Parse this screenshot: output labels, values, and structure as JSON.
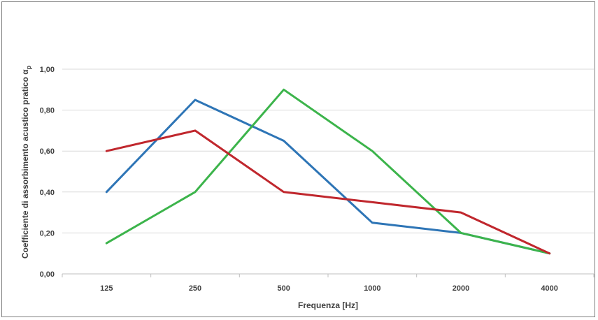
{
  "chart_data": {
    "type": "line",
    "title": "",
    "xlabel": "Frequenza [Hz]",
    "ylabel": "Coefficiente di assorbimento acustico pratico α",
    "ylabel_subscript": "p",
    "categories": [
      "125",
      "250",
      "500",
      "1000",
      "2000",
      "4000"
    ],
    "ylim": [
      0,
      1.0
    ],
    "yticks": [
      0,
      0.2,
      0.4,
      0.6,
      0.8,
      1.0
    ],
    "ytick_labels": [
      "0,00",
      "0,20",
      "0,40",
      "0,60",
      "0,80",
      "1,00"
    ],
    "grid": "horizontal",
    "legend": "none",
    "series": [
      {
        "color": "#2e75b6",
        "values": [
          0.4,
          0.85,
          0.65,
          0.25,
          0.2,
          0.1
        ]
      },
      {
        "color": "#3cb44b",
        "values": [
          0.15,
          0.4,
          0.9,
          0.6,
          0.2,
          0.1
        ]
      },
      {
        "color": "#c0272d",
        "values": [
          0.6,
          0.7,
          0.4,
          0.35,
          0.3,
          0.1
        ]
      }
    ]
  }
}
